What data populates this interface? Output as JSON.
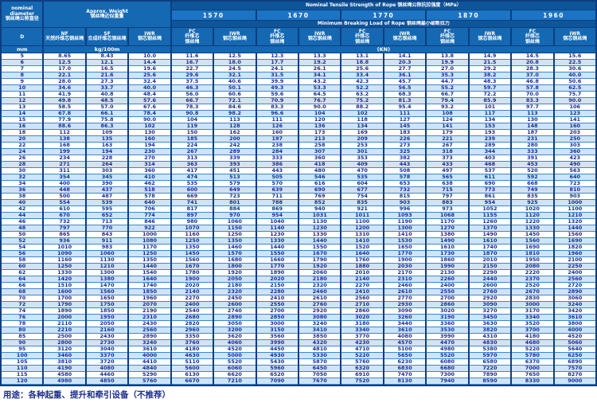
{
  "colors": {
    "table_background": "#0c3e80",
    "header_cell": "#1568b2",
    "header_band": "#0f5599",
    "grade_box": "#1b74c4",
    "row_alt": "#cfe4f7",
    "row_separator": "#4186cd",
    "data_text": "#1b2d8f",
    "header_text": "#ffffff"
  },
  "table": {
    "corner": {
      "en_line1": "nominal",
      "en_line2": "diameter",
      "zh": "钢丝绳公称直径",
      "symbol": "D",
      "unit": "mm"
    },
    "weight": {
      "title_en": "Approx. Weight",
      "title_zh": "钢丝绳近似重量",
      "unit": "kg/100m",
      "columns": [
        {
          "code": "NF",
          "zh": "天然纤维芯钢丝绳"
        },
        {
          "code": "SF",
          "zh": "合成纤维芯钢丝绳"
        },
        {
          "code": "IWR",
          "zh": "钢芯钢丝绳"
        }
      ]
    },
    "strength": {
      "title": "Nominal Tensile Strength of Rope 钢丝绳公称抗拉强度（MPa）",
      "breaking_title": "Minimum Breaking Load of Rope 钢丝绳最小破断拉力",
      "unit": "(KN)",
      "grades": [
        "1570",
        "1670",
        "1770",
        "1870",
        "1960"
      ],
      "sub_columns": [
        {
          "code": "FC",
          "zh_lines": [
            "纤维芯",
            "钢丝绳"
          ]
        },
        {
          "code": "IWR",
          "zh_lines": [
            "钢芯钢丝绳"
          ]
        }
      ]
    },
    "rows": [
      [
        "5",
        "8.65",
        "8.43",
        "10.0",
        "11.6",
        "12.5",
        "12.3",
        "13.3",
        "13.1",
        "14.1",
        "13.8",
        "14.9",
        "14.5",
        "15.6"
      ],
      [
        "6",
        "12.5",
        "12.1",
        "14.4",
        "16.7",
        "18.0",
        "17.7",
        "19.2",
        "18.8",
        "20.3",
        "19.9",
        "21.5",
        "20.8",
        "22.5"
      ],
      [
        "7",
        "17.0",
        "16.5",
        "19.6",
        "22.7",
        "24.5",
        "24.1",
        "26.1",
        "25.6",
        "27.7",
        "27.0",
        "29.2",
        "28.3",
        "30.6"
      ],
      [
        "8",
        "22.1",
        "21.6",
        "25.6",
        "29.6",
        "32.1",
        "31.5",
        "34.1",
        "33.4",
        "36.1",
        "35.3",
        "38.2",
        "37.0",
        "40.0"
      ],
      [
        "9",
        "28.0",
        "27.3",
        "32.4",
        "37.5",
        "40.6",
        "39.9",
        "43.2",
        "42.3",
        "45.7",
        "44.7",
        "48.3",
        "46.8",
        "50.6"
      ],
      [
        "10",
        "34.6",
        "33.7",
        "40.0",
        "46.3",
        "50.1",
        "49.3",
        "53.3",
        "52.2",
        "56.5",
        "55.2",
        "59.7",
        "57.8",
        "62.5"
      ],
      [
        "11",
        "41.9",
        "40.8",
        "48.4",
        "56.0",
        "60.6",
        "59.6",
        "64.5",
        "63.2",
        "68.3",
        "66.7",
        "72.2",
        "70.0",
        "75.7"
      ],
      [
        "12",
        "49.8",
        "48.5",
        "57.6",
        "66.7",
        "72.1",
        "70.9",
        "76.7",
        "75.2",
        "81.3",
        "79.4",
        "85.9",
        "83.3",
        "90.0"
      ],
      [
        "13",
        "58.5",
        "57.0",
        "67.6",
        "78.3",
        "84.6",
        "83.3",
        "90.0",
        "88.2",
        "95.4",
        "93.2",
        "101",
        "97.7",
        "106"
      ],
      [
        "14",
        "67.8",
        "66.1",
        "78.4",
        "90.8",
        "98.2",
        "96.6",
        "104",
        "102",
        "111",
        "108",
        "117",
        "113",
        "123"
      ],
      [
        "15",
        "77.9",
        "75.8",
        "90.0",
        "104",
        "113",
        "111",
        "120",
        "118",
        "127",
        "124",
        "134",
        "130",
        "141"
      ],
      [
        "16",
        "88.6",
        "86.3",
        "102",
        "119",
        "128",
        "126",
        "136",
        "134",
        "145",
        "141",
        "153",
        "148",
        "160"
      ],
      [
        "18",
        "112",
        "109",
        "130",
        "150",
        "162",
        "160",
        "173",
        "169",
        "183",
        "179",
        "193",
        "187",
        "203"
      ],
      [
        "20",
        "138",
        "135",
        "160",
        "185",
        "200",
        "197",
        "213",
        "209",
        "226",
        "221",
        "239",
        "231",
        "250"
      ],
      [
        "22",
        "168",
        "163",
        "194",
        "224",
        "242",
        "238",
        "258",
        "253",
        "273",
        "267",
        "289",
        "280",
        "303"
      ],
      [
        "24",
        "199",
        "194",
        "230",
        "267",
        "289",
        "284",
        "307",
        "301",
        "325",
        "318",
        "344",
        "333",
        "360"
      ],
      [
        "26",
        "234",
        "228",
        "270",
        "313",
        "339",
        "333",
        "360",
        "353",
        "382",
        "373",
        "403",
        "391",
        "423"
      ],
      [
        "28",
        "271",
        "264",
        "314",
        "363",
        "393",
        "386",
        "418",
        "409",
        "443",
        "433",
        "468",
        "453",
        "490"
      ],
      [
        "30",
        "311",
        "303",
        "360",
        "417",
        "451",
        "443",
        "480",
        "470",
        "508",
        "497",
        "537",
        "520",
        "563"
      ],
      [
        "32",
        "354",
        "345",
        "410",
        "474",
        "513",
        "505",
        "546",
        "535",
        "578",
        "565",
        "611",
        "592",
        "640"
      ],
      [
        "34",
        "400",
        "390",
        "462",
        "535",
        "579",
        "570",
        "616",
        "604",
        "653",
        "638",
        "690",
        "668",
        "723"
      ],
      [
        "36",
        "448",
        "437",
        "518",
        "600",
        "649",
        "639",
        "690",
        "677",
        "732",
        "715",
        "773",
        "749",
        "810"
      ],
      [
        "38",
        "500",
        "487",
        "578",
        "669",
        "723",
        "711",
        "769",
        "754",
        "815",
        "797",
        "861",
        "835",
        "903"
      ],
      [
        "40",
        "554",
        "539",
        "640",
        "741",
        "801",
        "788",
        "852",
        "835",
        "903",
        "883",
        "954",
        "925",
        "1000"
      ],
      [
        "42",
        "610",
        "595",
        "706",
        "817",
        "884",
        "869",
        "940",
        "921",
        "996",
        "973",
        "1052",
        "1020",
        "1100"
      ],
      [
        "44",
        "670",
        "652",
        "774",
        "897",
        "970",
        "954",
        "1031",
        "1011",
        "1093",
        "1068",
        "1155",
        "1120",
        "1210"
      ],
      [
        "46",
        "732",
        "713",
        "846",
        "980",
        "1060",
        "1040",
        "1130",
        "1100",
        "1190",
        "1170",
        "1260",
        "1220",
        "1320"
      ],
      [
        "48",
        "797",
        "770",
        "922",
        "1070",
        "1150",
        "1140",
        "1230",
        "1200",
        "1300",
        "1270",
        "1370",
        "1330",
        "1440"
      ],
      [
        "50",
        "865",
        "843",
        "1000",
        "1160",
        "1250",
        "1230",
        "1330",
        "1310",
        "1410",
        "1380",
        "1490",
        "1450",
        "1560"
      ],
      [
        "52",
        "936",
        "911",
        "1080",
        "1250",
        "1350",
        "1330",
        "1440",
        "1410",
        "1530",
        "1490",
        "1610",
        "1560",
        "1690"
      ],
      [
        "54",
        "1010",
        "983",
        "1170",
        "1350",
        "1460",
        "1440",
        "1550",
        "1520",
        "1650",
        "1610",
        "1740",
        "1690",
        "1820"
      ],
      [
        "56",
        "1090",
        "1060",
        "1250",
        "1450",
        "1570",
        "1550",
        "1670",
        "1640",
        "1770",
        "1730",
        "1870",
        "1810",
        "1960"
      ],
      [
        "58",
        "1160",
        "1130",
        "1350",
        "1560",
        "1680",
        "1660",
        "1790",
        "1760",
        "1900",
        "1860",
        "2010",
        "1950",
        "2100"
      ],
      [
        "60",
        "1250",
        "1210",
        "1440",
        "1670",
        "1800",
        "1770",
        "1920",
        "1880",
        "2030",
        "1990",
        "2150",
        "2080",
        "2250"
      ],
      [
        "62",
        "1330",
        "1300",
        "1540",
        "1780",
        "1920",
        "1890",
        "2060",
        "2010",
        "2170",
        "2130",
        "2290",
        "2220",
        "2400"
      ],
      [
        "64",
        "1420",
        "1380",
        "1640",
        "1900",
        "2050",
        "2020",
        "2180",
        "2140",
        "2310",
        "2260",
        "2440",
        "2370",
        "2560"
      ],
      [
        "66",
        "1510",
        "1470",
        "1740",
        "2020",
        "2180",
        "2150",
        "2320",
        "2270",
        "2460",
        "2400",
        "2600",
        "2520",
        "2720"
      ],
      [
        "68",
        "1600",
        "1560",
        "1850",
        "2140",
        "2320",
        "2280",
        "2460",
        "2410",
        "2610",
        "2550",
        "2760",
        "2670",
        "2890"
      ],
      [
        "70",
        "1700",
        "1650",
        "1960",
        "2270",
        "2450",
        "2410",
        "2610",
        "2560",
        "2770",
        "2700",
        "2920",
        "2830",
        "3060"
      ],
      [
        "72",
        "1790",
        "1750",
        "2070",
        "2400",
        "2600",
        "2550",
        "2760",
        "2710",
        "2930",
        "2860",
        "3090",
        "3000",
        "3240"
      ],
      [
        "74",
        "1890",
        "1850",
        "2190",
        "2540",
        "2740",
        "2700",
        "2920",
        "2860",
        "3090",
        "3020",
        "3270",
        "3170",
        "3420"
      ],
      [
        "76",
        "2000",
        "1950",
        "2310",
        "2680",
        "2890",
        "2850",
        "3080",
        "3020",
        "3260",
        "3190",
        "3450",
        "3340",
        "3610"
      ],
      [
        "78",
        "2110",
        "2050",
        "2430",
        "2820",
        "3050",
        "3000",
        "3240",
        "3180",
        "3440",
        "3360",
        "3630",
        "3520",
        "3800"
      ],
      [
        "80",
        "2210",
        "2160",
        "2560",
        "2960",
        "3200",
        "3150",
        "3410",
        "3340",
        "3610",
        "3530",
        "3820",
        "3700",
        "4000"
      ],
      [
        "85",
        "2500",
        "2430",
        "2890",
        "3350",
        "3620",
        "3560",
        "3850",
        "3770",
        "4080",
        "3990",
        "4310",
        "4180",
        "4520"
      ],
      [
        "90",
        "2800",
        "2730",
        "3240",
        "3760",
        "4060",
        "3990",
        "4320",
        "4230",
        "4570",
        "4470",
        "4830",
        "4680",
        "5060"
      ],
      [
        "95",
        "3120",
        "3040",
        "3610",
        "4180",
        "4520",
        "4450",
        "4810",
        "4710",
        "5100",
        "4980",
        "5380",
        "5220",
        "5640"
      ],
      [
        "100",
        "3460",
        "3370",
        "4000",
        "4630",
        "5000",
        "4930",
        "5330",
        "5220",
        "5650",
        "5520",
        "5970",
        "5780",
        "6250"
      ],
      [
        "105",
        "3810",
        "3720",
        "4410",
        "5110",
        "5520",
        "5430",
        "5870",
        "5760",
        "6230",
        "6080",
        "6580",
        "6370",
        "6890"
      ],
      [
        "110",
        "4190",
        "4080",
        "4840",
        "5600",
        "6060",
        "5960",
        "6450",
        "6320",
        "6830",
        "6680",
        "7220",
        "7000",
        "7570"
      ],
      [
        "115",
        "4580",
        "4460",
        "5290",
        "6130",
        "6620",
        "6520",
        "7050",
        "6910",
        "7470",
        "7300",
        "7890",
        "7650",
        "8270"
      ],
      [
        "120",
        "4980",
        "4850",
        "5760",
        "6670",
        "7210",
        "7090",
        "7670",
        "7520",
        "8130",
        "7940",
        "8590",
        "8330",
        "9000"
      ]
    ]
  },
  "footer": {
    "note": "用途：各种起重、提升和牵引设备（不推荐）"
  }
}
